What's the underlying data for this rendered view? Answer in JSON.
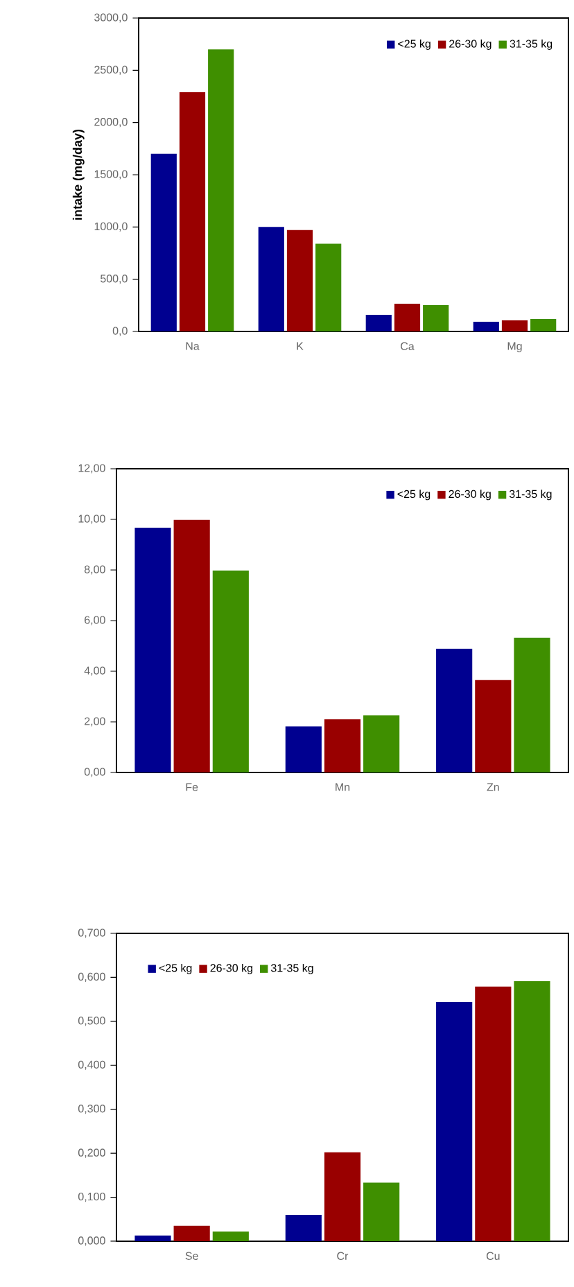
{
  "chart_data": [
    {
      "type": "bar",
      "ylabel": "intake (mg/day)",
      "categories": [
        "Na",
        "K",
        "Ca",
        "Mg"
      ],
      "legend": "top right",
      "ylim": [
        0,
        3000
      ],
      "yticks": [
        {
          "value": 0,
          "label": "0,0"
        },
        {
          "value": 500,
          "label": "500,0"
        },
        {
          "value": 1000,
          "label": "1000,0"
        },
        {
          "value": 1500,
          "label": "1500,0"
        },
        {
          "value": 2000,
          "label": "2000,0"
        },
        {
          "value": 2500,
          "label": "2500,0"
        },
        {
          "value": 3000,
          "label": "3000,0"
        }
      ],
      "series": [
        {
          "name": "<25 kg",
          "color": "#000090",
          "values": [
            1700,
            1000,
            160,
            93
          ]
        },
        {
          "name": "26-30 kg",
          "color": "#990000",
          "values": [
            2290,
            970,
            266,
            106
          ]
        },
        {
          "name": "31-35 kg",
          "color": "#3f8f00",
          "values": [
            2700,
            840,
            253,
            120
          ]
        }
      ]
    },
    {
      "type": "bar",
      "categories": [
        "Fe",
        "Mn",
        "Zn"
      ],
      "legend": "top right",
      "ylim": [
        0,
        12
      ],
      "yticks": [
        {
          "value": 0,
          "label": "0,00"
        },
        {
          "value": 2,
          "label": "2,00"
        },
        {
          "value": 4,
          "label": "4,00"
        },
        {
          "value": 6,
          "label": "6,00"
        },
        {
          "value": 8,
          "label": "8,00"
        },
        {
          "value": 10,
          "label": "10,00"
        },
        {
          "value": 12,
          "label": "12,00"
        }
      ],
      "series": [
        {
          "name": "<25 kg",
          "color": "#000090",
          "values": [
            9.67,
            1.82,
            4.88
          ]
        },
        {
          "name": "26-30 kg",
          "color": "#990000",
          "values": [
            9.98,
            2.1,
            3.65
          ]
        },
        {
          "name": "31-35 kg",
          "color": "#3f8f00",
          "values": [
            7.98,
            2.26,
            5.32
          ]
        }
      ]
    },
    {
      "type": "bar",
      "categories": [
        "Se",
        "Cr",
        "Cu"
      ],
      "legend": "top left",
      "ylim": [
        0,
        0.7
      ],
      "yticks": [
        {
          "value": 0,
          "label": "0,000"
        },
        {
          "value": 0.1,
          "label": "0,100"
        },
        {
          "value": 0.2,
          "label": "0,200"
        },
        {
          "value": 0.3,
          "label": "0,300"
        },
        {
          "value": 0.4,
          "label": "0,400"
        },
        {
          "value": 0.5,
          "label": "0,500"
        },
        {
          "value": 0.6,
          "label": "0,600"
        },
        {
          "value": 0.7,
          "label": "0,700"
        }
      ],
      "series": [
        {
          "name": "<25 kg",
          "color": "#000090",
          "values": [
            0.013,
            0.06,
            0.544
          ]
        },
        {
          "name": "26-30 kg",
          "color": "#990000",
          "values": [
            0.035,
            0.202,
            0.579
          ]
        },
        {
          "name": "31-35 kg",
          "color": "#3f8f00",
          "values": [
            0.022,
            0.133,
            0.591
          ]
        }
      ]
    }
  ]
}
